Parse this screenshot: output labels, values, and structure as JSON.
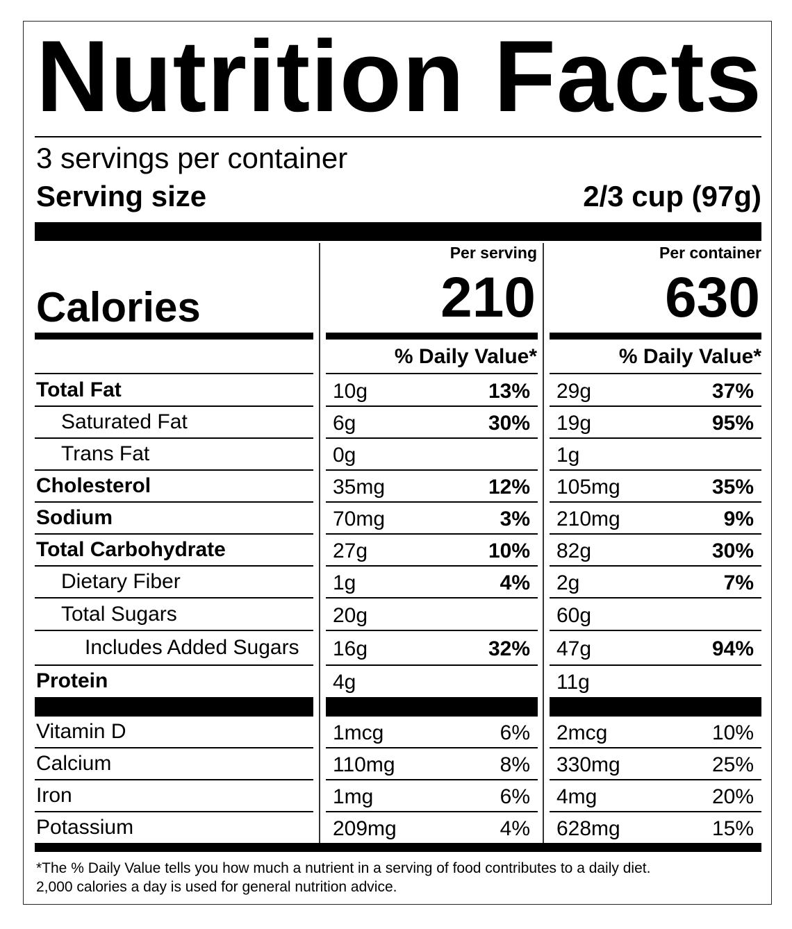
{
  "title": "Nutrition Facts",
  "servings_per_container": "3 servings per container",
  "serving_size_label": "Serving size",
  "serving_size_value": "2/3 cup (97g)",
  "calories": {
    "label": "Calories",
    "per_serving_label": "Per serving",
    "per_container_label": "Per container",
    "per_serving": "210",
    "per_container": "630"
  },
  "daily_value_header": "% Daily Value*",
  "nutrients": [
    {
      "name": "Total Fat",
      "bold": true,
      "indent": 0,
      "serving_amount": "10g",
      "serving_dv": "13%",
      "container_amount": "29g",
      "container_dv": "37%"
    },
    {
      "name": "Saturated Fat",
      "bold": false,
      "indent": 1,
      "serving_amount": "6g",
      "serving_dv": "30%",
      "container_amount": "19g",
      "container_dv": "95%"
    },
    {
      "name": "Trans Fat",
      "bold": false,
      "indent": 1,
      "serving_amount": "0g",
      "serving_dv": "",
      "container_amount": "1g",
      "container_dv": ""
    },
    {
      "name": "Cholesterol",
      "bold": true,
      "indent": 0,
      "serving_amount": "35mg",
      "serving_dv": "12%",
      "container_amount": "105mg",
      "container_dv": "35%"
    },
    {
      "name": "Sodium",
      "bold": true,
      "indent": 0,
      "serving_amount": "70mg",
      "serving_dv": "3%",
      "container_amount": "210mg",
      "container_dv": "9%"
    },
    {
      "name": "Total Carbohydrate",
      "bold": true,
      "indent": 0,
      "serving_amount": "27g",
      "serving_dv": "10%",
      "container_amount": "82g",
      "container_dv": "30%"
    },
    {
      "name": "Dietary Fiber",
      "bold": false,
      "indent": 1,
      "serving_amount": "1g",
      "serving_dv": "4%",
      "container_amount": "2g",
      "container_dv": "7%"
    },
    {
      "name": "Total Sugars",
      "bold": false,
      "indent": 1,
      "serving_amount": "20g",
      "serving_dv": "",
      "container_amount": "60g",
      "container_dv": ""
    },
    {
      "name": "Includes Added Sugars",
      "bold": false,
      "indent": 2,
      "serving_amount": "16g",
      "serving_dv": "32%",
      "container_amount": "47g",
      "container_dv": "94%"
    },
    {
      "name": "Protein",
      "bold": true,
      "indent": 0,
      "serving_amount": "4g",
      "serving_dv": "",
      "container_amount": "11g",
      "container_dv": ""
    }
  ],
  "vitamins": [
    {
      "name": "Vitamin D",
      "serving_amount": "1mcg",
      "serving_dv": "6%",
      "container_amount": "2mcg",
      "container_dv": "10%"
    },
    {
      "name": "Calcium",
      "serving_amount": "110mg",
      "serving_dv": "8%",
      "container_amount": "330mg",
      "container_dv": "25%"
    },
    {
      "name": "Iron",
      "serving_amount": "1mg",
      "serving_dv": "6%",
      "container_amount": "4mg",
      "container_dv": "20%"
    },
    {
      "name": "Potassium",
      "serving_amount": "209mg",
      "serving_dv": "4%",
      "container_amount": "628mg",
      "container_dv": "15%"
    }
  ],
  "footnote_line1": "*The % Daily Value tells you how much a nutrient in a serving of food contributes to a daily diet.",
  "footnote_line2": "2,000 calories a day is used for general nutrition advice."
}
